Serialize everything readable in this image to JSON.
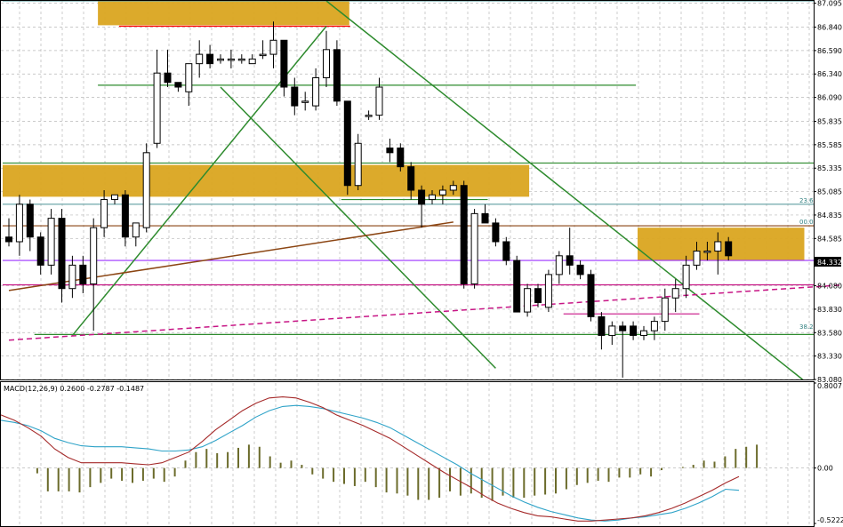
{
  "chart_data": {
    "type": "candlestick",
    "price_axis": {
      "ticks": [
        "87.095",
        "86.840",
        "86.590",
        "86.340",
        "86.090",
        "85.835",
        "85.585",
        "85.335",
        "85.085",
        "84.835",
        "84.585",
        "84.332",
        "84.080",
        "83.830",
        "83.580",
        "83.330",
        "83.080"
      ],
      "ylim": [
        83.08,
        87.12
      ],
      "current_price": "84.332"
    },
    "candles": [
      [
        84.6,
        84.8,
        84.5,
        84.55
      ],
      [
        84.55,
        85.05,
        84.4,
        84.95
      ],
      [
        84.95,
        85.0,
        84.45,
        84.6
      ],
      [
        84.6,
        84.65,
        84.2,
        84.3
      ],
      [
        84.3,
        84.9,
        84.2,
        84.8
      ],
      [
        84.8,
        84.9,
        83.9,
        84.05
      ],
      [
        84.05,
        84.4,
        83.95,
        84.3
      ],
      [
        84.3,
        84.4,
        84.0,
        84.1
      ],
      [
        84.1,
        84.8,
        83.6,
        84.7
      ],
      [
        84.7,
        85.1,
        84.6,
        85.0
      ],
      [
        85.0,
        85.05,
        84.95,
        85.05
      ],
      [
        85.05,
        85.1,
        84.5,
        84.6
      ],
      [
        84.6,
        84.75,
        84.5,
        84.75
      ],
      [
        84.7,
        85.6,
        84.65,
        85.5
      ],
      [
        85.6,
        86.6,
        85.55,
        86.35
      ],
      [
        86.35,
        86.6,
        86.2,
        86.25
      ],
      [
        86.25,
        86.25,
        86.15,
        86.2
      ],
      [
        86.15,
        86.45,
        86.0,
        86.45
      ],
      [
        86.45,
        86.7,
        86.3,
        86.55
      ],
      [
        86.55,
        86.65,
        86.4,
        86.45
      ],
      [
        86.5,
        86.55,
        86.45,
        86.5
      ],
      [
        86.5,
        86.6,
        86.4,
        86.5
      ],
      [
        86.5,
        86.55,
        86.45,
        86.5
      ],
      [
        86.45,
        86.55,
        86.45,
        86.5
      ],
      [
        86.55,
        86.7,
        86.5,
        86.55
      ],
      [
        86.55,
        86.9,
        86.4,
        86.7
      ],
      [
        86.7,
        86.7,
        86.1,
        86.2
      ],
      [
        86.2,
        86.3,
        85.9,
        86.0
      ],
      [
        86.05,
        86.15,
        85.95,
        86.05
      ],
      [
        86.0,
        86.4,
        85.95,
        86.3
      ],
      [
        86.3,
        86.8,
        86.2,
        86.6
      ],
      [
        86.6,
        86.7,
        86.0,
        86.05
      ],
      [
        86.05,
        86.05,
        85.05,
        85.15
      ],
      [
        85.15,
        85.7,
        85.1,
        85.6
      ],
      [
        85.9,
        85.95,
        85.85,
        85.9
      ],
      [
        85.9,
        86.3,
        85.85,
        86.2
      ],
      [
        85.55,
        85.65,
        85.4,
        85.5
      ],
      [
        85.55,
        85.6,
        85.3,
        85.35
      ],
      [
        85.35,
        85.4,
        85.0,
        85.1
      ],
      [
        85.1,
        85.15,
        84.7,
        84.95
      ],
      [
        85.0,
        85.1,
        84.95,
        85.05
      ],
      [
        85.05,
        85.15,
        84.95,
        85.1
      ],
      [
        85.1,
        85.2,
        85.05,
        85.15
      ],
      [
        85.15,
        85.2,
        84.05,
        84.1
      ],
      [
        84.1,
        84.9,
        84.05,
        84.85
      ],
      [
        84.85,
        84.95,
        84.75,
        84.75
      ],
      [
        84.75,
        84.8,
        84.5,
        84.55
      ],
      [
        84.55,
        84.6,
        84.3,
        84.35
      ],
      [
        84.35,
        84.4,
        83.8,
        83.8
      ],
      [
        83.8,
        84.1,
        83.75,
        84.05
      ],
      [
        84.05,
        84.1,
        83.85,
        83.9
      ],
      [
        83.85,
        84.25,
        83.8,
        84.2
      ],
      [
        84.2,
        84.45,
        84.1,
        84.4
      ],
      [
        84.4,
        84.7,
        84.2,
        84.3
      ],
      [
        84.3,
        84.35,
        84.15,
        84.2
      ],
      [
        84.2,
        84.25,
        83.7,
        83.75
      ],
      [
        83.75,
        83.8,
        83.4,
        83.55
      ],
      [
        83.55,
        83.7,
        83.45,
        83.65
      ],
      [
        83.65,
        83.7,
        83.1,
        83.6
      ],
      [
        83.65,
        83.7,
        83.5,
        83.55
      ],
      [
        83.55,
        83.65,
        83.5,
        83.6
      ],
      [
        83.6,
        83.75,
        83.5,
        83.7
      ],
      [
        83.7,
        84.05,
        83.6,
        83.95
      ],
      [
        83.95,
        84.15,
        83.8,
        84.05
      ],
      [
        84.05,
        84.4,
        83.95,
        84.3
      ],
      [
        84.3,
        84.55,
        84.25,
        84.45
      ],
      [
        84.45,
        84.55,
        84.35,
        84.45
      ],
      [
        84.45,
        84.65,
        84.2,
        84.55
      ],
      [
        84.55,
        84.6,
        84.35,
        84.4
      ]
    ],
    "zones": [
      {
        "from_candle": 9,
        "to_candle": 32,
        "low": 86.86,
        "high": 87.13,
        "color": "#daa520"
      },
      {
        "from_candle": 0,
        "to_candle": 49,
        "low": 85.03,
        "high": 85.37,
        "color": "#daa520"
      },
      {
        "from_candle": 60,
        "to_candle": 75,
        "low": 84.35,
        "high": 84.7,
        "color": "#daa520"
      }
    ],
    "horizontal_lines": [
      {
        "price": 86.22,
        "from_candle": 9,
        "to_candle": 59,
        "color": "#2e8b2e"
      },
      {
        "price": 85.39,
        "from_candle": 0,
        "to_candle": 80,
        "color": "#2e8b2e"
      },
      {
        "price": 83.56,
        "from_candle": 3,
        "to_candle": 81,
        "color": "#2e8b2e"
      },
      {
        "price": 84.35,
        "from_candle": 0,
        "to_candle": 81,
        "color": "#9b30ff"
      },
      {
        "price": 84.09,
        "from_candle": 0,
        "to_candle": 81,
        "color": "#c71585"
      },
      {
        "price": 84.72,
        "from_candle": 0,
        "to_candle": 81,
        "color": "#8b4513"
      },
      {
        "price": 84.95,
        "from_candle": 0,
        "to_candle": 81,
        "color": "#5f9ea0"
      },
      {
        "price": 87.12,
        "from_candle": 0,
        "to_candle": 81,
        "color": "#5f9ea0"
      },
      {
        "price": 86.85,
        "from_candle": 11,
        "to_candle": 32,
        "color": "#ff0000"
      },
      {
        "price": 85.0,
        "from_candle": 32,
        "to_candle": 45,
        "color": "#2e8b2e"
      },
      {
        "price": 83.78,
        "from_candle": 53,
        "to_candle": 65,
        "color": "#c71585"
      }
    ],
    "trend_lines": [
      {
        "p1": [
          6,
          83.55
        ],
        "p2": [
          30,
          86.85
        ],
        "color": "#2e8b2e",
        "dash": false
      },
      {
        "p1": [
          20,
          86.2
        ],
        "p2": [
          46,
          83.2
        ],
        "color": "#2e8b2e",
        "dash": false
      },
      {
        "p1": [
          30,
          87.12
        ],
        "p2": [
          75,
          83.08
        ],
        "color": "#2e8b2e",
        "dash": false
      },
      {
        "p1": [
          0,
          84.03
        ],
        "p2": [
          42,
          84.76
        ],
        "color": "#8b4513",
        "dash": false
      },
      {
        "p1": [
          0,
          83.5
        ],
        "p2": [
          83,
          84.12
        ],
        "color": "#c71585",
        "dash": true
      }
    ],
    "fib_labels": [
      {
        "text": "23.6",
        "price": 84.96
      },
      {
        "text": "00.0",
        "price": 84.73
      },
      {
        "text": "38.2",
        "price": 83.61
      },
      {
        "text": "00.0",
        "price": 87.12
      }
    ],
    "macd": {
      "label": "MACD(12,26,9) 0.2600 -0.2787 -0.1487",
      "params": [
        12,
        26,
        9
      ],
      "values": [
        0.26,
        -0.2787,
        -0.1487
      ],
      "scale_ticks": [
        "0.8007",
        "0.00",
        "-0.5222"
      ],
      "ylim": [
        -0.5222,
        0.8007
      ],
      "histogram": [
        0.0,
        -0.05,
        -0.22,
        -0.22,
        -0.22,
        -0.23,
        -0.18,
        -0.14,
        -0.1,
        -0.12,
        -0.14,
        -0.12,
        -0.1,
        -0.13,
        -0.08,
        0.07,
        0.15,
        0.18,
        0.14,
        0.15,
        0.19,
        0.22,
        0.2,
        0.11,
        0.05,
        0.07,
        0.03,
        -0.06,
        -0.1,
        -0.13,
        -0.15,
        -0.17,
        -0.13,
        -0.18,
        -0.23,
        -0.24,
        -0.26,
        -0.3,
        -0.3,
        -0.28,
        -0.22,
        -0.26,
        -0.24,
        -0.28,
        -0.31,
        -0.26,
        -0.28,
        -0.28,
        -0.26,
        -0.25,
        -0.24,
        -0.2,
        -0.16,
        -0.14,
        -0.12,
        -0.13,
        -0.09,
        -0.09,
        -0.06,
        -0.08,
        -0.02,
        0.0,
        0.01,
        0.03,
        0.07,
        0.06,
        0.11,
        0.18,
        0.2,
        0.22
      ],
      "signal_line": [
        0.45,
        0.43,
        0.4,
        0.35,
        0.28,
        0.24,
        0.21,
        0.2,
        0.2,
        0.2,
        0.19,
        0.18,
        0.16,
        0.16,
        0.17,
        0.2,
        0.26,
        0.33,
        0.4,
        0.48,
        0.54,
        0.58,
        0.59,
        0.58,
        0.56,
        0.53,
        0.5,
        0.47,
        0.43,
        0.38,
        0.31,
        0.24,
        0.17,
        0.1,
        0.03,
        -0.05,
        -0.12,
        -0.19,
        -0.26,
        -0.32,
        -0.37,
        -0.41,
        -0.44,
        -0.47,
        -0.49,
        -0.5,
        -0.49,
        -0.47,
        -0.46,
        -0.44,
        -0.42,
        -0.38,
        -0.33,
        -0.27,
        -0.2,
        -0.21
      ],
      "macd_line": [
        0.5,
        0.45,
        0.38,
        0.3,
        0.18,
        0.1,
        0.05,
        0.05,
        0.05,
        0.05,
        0.04,
        0.03,
        0.05,
        0.1,
        0.15,
        0.25,
        0.36,
        0.45,
        0.54,
        0.61,
        0.66,
        0.67,
        0.66,
        0.62,
        0.57,
        0.5,
        0.45,
        0.4,
        0.34,
        0.28,
        0.2,
        0.12,
        0.04,
        -0.04,
        -0.11,
        -0.18,
        -0.26,
        -0.33,
        -0.38,
        -0.42,
        -0.45,
        -0.46,
        -0.48,
        -0.5,
        -0.5,
        -0.49,
        -0.48,
        -0.47,
        -0.45,
        -0.42,
        -0.38,
        -0.33,
        -0.27,
        -0.21,
        -0.14,
        -0.08
      ]
    }
  }
}
